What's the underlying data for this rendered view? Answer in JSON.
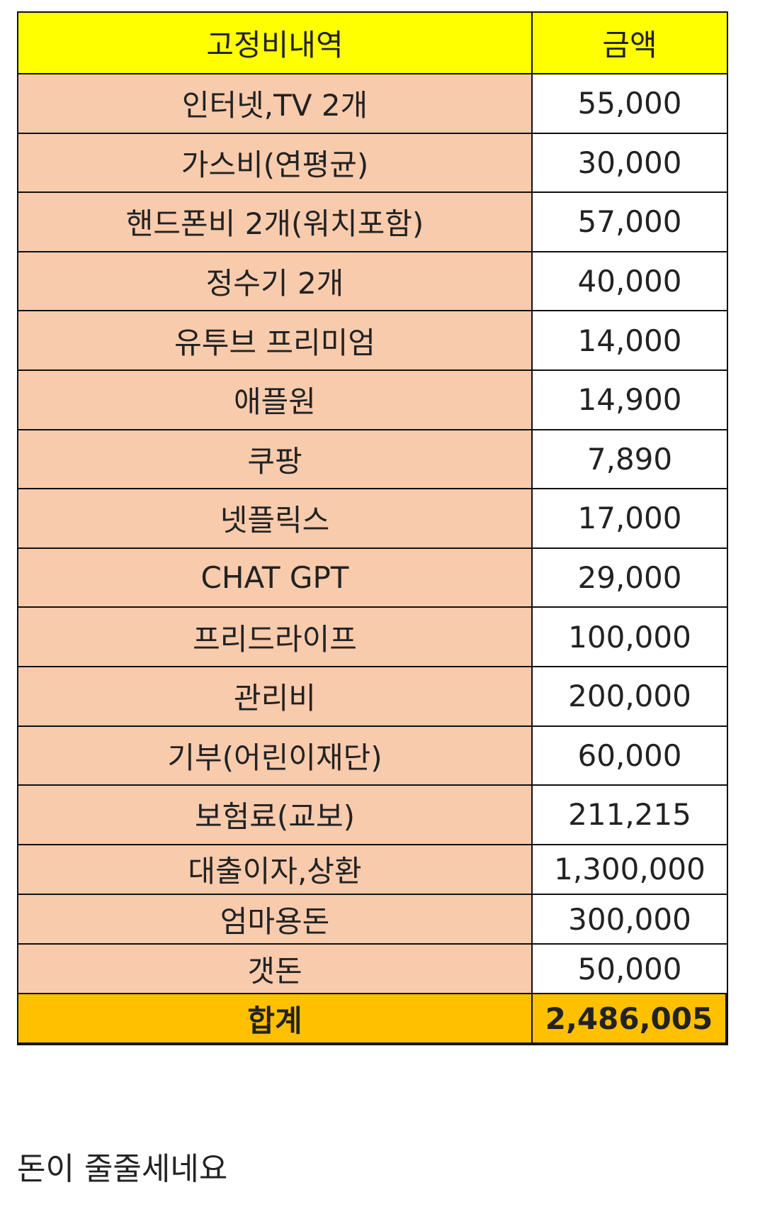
{
  "table": {
    "header": [
      "고정비내역",
      "금액"
    ],
    "rows": [
      [
        "인터넷,TV 2개",
        "55,000"
      ],
      [
        "가스비(연평균)",
        "30,000"
      ],
      [
        "핸드폰비 2개(워치포함)",
        "57,000"
      ],
      [
        "정수기 2개",
        "40,000"
      ],
      [
        "유투브 프리미엄",
        "14,000"
      ],
      [
        "애플원",
        "14,900"
      ],
      [
        "쿠팡",
        "7,890"
      ],
      [
        "넷플릭스",
        "17,000"
      ],
      [
        "CHAT GPT",
        "29,000"
      ],
      [
        "프리드라이프",
        "100,000"
      ],
      [
        "관리비",
        "200,000"
      ],
      [
        "기부(어린이재단)",
        "60,000"
      ],
      [
        "보험료(교보)",
        "211,215"
      ],
      [
        "대출이자,상환",
        "1,300,000"
      ],
      [
        "엄마용돈",
        "300,000"
      ],
      [
        "갯돈",
        "50,000"
      ]
    ],
    "total": [
      "합계",
      "2,486,005"
    ]
  },
  "caption": "돈이 줄줄세네요"
}
